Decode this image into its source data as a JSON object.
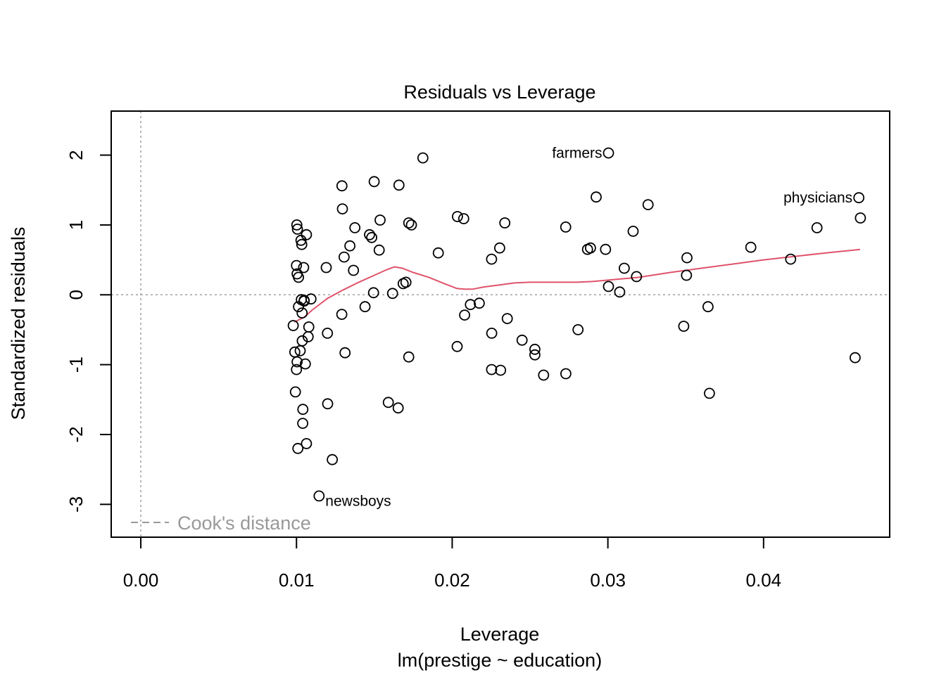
{
  "chart_data": {
    "type": "scatter",
    "title": "Residuals vs Leverage",
    "xlabel": "Leverage",
    "sublabel": "lm(prestige ~ education)",
    "ylabel": "Standardized residuals",
    "xlim": [
      -0.0019,
      0.0481
    ],
    "ylim": [
      -3.47,
      2.63
    ],
    "x_ticks": [
      0.0,
      0.01,
      0.02,
      0.03,
      0.04
    ],
    "x_tick_labels": [
      "0.00",
      "0.01",
      "0.02",
      "0.03",
      "0.04"
    ],
    "y_ticks": [
      -3,
      -2,
      -1,
      0,
      1,
      2
    ],
    "y_tick_labels": [
      "-3",
      "-2",
      "-1",
      "0",
      "1",
      "2"
    ],
    "reference_lines": {
      "x": 0,
      "y": 0,
      "color": "#a0a0a0"
    },
    "legend": {
      "label": "Cook's distance",
      "position": "bottom-left",
      "color": "#999999"
    },
    "smooth_color": "#df536b",
    "points": [
      [
        0.01002,
        1.0
      ],
      [
        0.01006,
        0.94
      ],
      [
        0.01029,
        0.78
      ],
      [
        0.01034,
        0.72
      ],
      [
        0.01064,
        0.86
      ],
      [
        0.01,
        0.42
      ],
      [
        0.01046,
        0.39
      ],
      [
        0.01004,
        0.3
      ],
      [
        0.01013,
        0.25
      ],
      [
        0.01031,
        -0.07
      ],
      [
        0.01049,
        -0.08
      ],
      [
        0.01049,
        -0.09
      ],
      [
        0.01093,
        -0.06
      ],
      [
        0.01013,
        -0.17
      ],
      [
        0.01036,
        -0.26
      ],
      [
        0.00979,
        -0.44
      ],
      [
        0.01079,
        -0.46
      ],
      [
        0.01037,
        -0.66
      ],
      [
        0.01075,
        -0.6
      ],
      [
        0.00989,
        -0.82
      ],
      [
        0.01024,
        -0.8
      ],
      [
        0.01004,
        -0.96
      ],
      [
        0.01057,
        -0.99
      ],
      [
        0.01,
        -1.07
      ],
      [
        0.00993,
        -1.39
      ],
      [
        0.01041,
        -1.64
      ],
      [
        0.0104,
        -1.84
      ],
      [
        0.01064,
        -2.13
      ],
      [
        0.01009,
        -2.2
      ],
      [
        0.01145,
        -2.88
      ],
      [
        0.0123,
        -2.36
      ],
      [
        0.01191,
        0.39
      ],
      [
        0.01199,
        -0.55
      ],
      [
        0.012,
        -1.56
      ],
      [
        0.01292,
        1.56
      ],
      [
        0.01295,
        1.23
      ],
      [
        0.01306,
        0.54
      ],
      [
        0.01291,
        -0.28
      ],
      [
        0.01312,
        -0.83
      ],
      [
        0.01343,
        0.7
      ],
      [
        0.01366,
        0.35
      ],
      [
        0.01375,
        0.96
      ],
      [
        0.0144,
        -0.17
      ],
      [
        0.01469,
        0.86
      ],
      [
        0.01483,
        0.82
      ],
      [
        0.01499,
        1.62
      ],
      [
        0.01495,
        0.03
      ],
      [
        0.01531,
        0.64
      ],
      [
        0.01537,
        1.07
      ],
      [
        0.0159,
        -1.54
      ],
      [
        0.01617,
        0.02
      ],
      [
        0.01653,
        -1.62
      ],
      [
        0.01658,
        1.57
      ],
      [
        0.01685,
        0.16
      ],
      [
        0.01703,
        0.18
      ],
      [
        0.01721,
        1.03
      ],
      [
        0.01738,
        1.0
      ],
      [
        0.01721,
        -0.89
      ],
      [
        0.01812,
        1.96
      ],
      [
        0.01911,
        0.6
      ],
      [
        0.02034,
        1.12
      ],
      [
        0.02032,
        -0.74
      ],
      [
        0.02074,
        1.09
      ],
      [
        0.0208,
        -0.29
      ],
      [
        0.02117,
        -0.14
      ],
      [
        0.02174,
        -0.12
      ],
      [
        0.02254,
        -0.55
      ],
      [
        0.02253,
        0.51
      ],
      [
        0.02253,
        -1.07
      ],
      [
        0.02305,
        0.67
      ],
      [
        0.02311,
        -1.08
      ],
      [
        0.02338,
        1.03
      ],
      [
        0.02354,
        -0.34
      ],
      [
        0.02449,
        -0.65
      ],
      [
        0.02531,
        -0.78
      ],
      [
        0.02531,
        -0.86
      ],
      [
        0.02587,
        -1.15
      ],
      [
        0.02729,
        0.97
      ],
      [
        0.0273,
        -1.13
      ],
      [
        0.02808,
        -0.5
      ],
      [
        0.02869,
        0.65
      ],
      [
        0.02888,
        0.67
      ],
      [
        0.02925,
        1.4
      ],
      [
        0.02985,
        0.65
      ],
      [
        0.03004,
        0.12
      ],
      [
        0.03004,
        2.03
      ],
      [
        0.03076,
        0.04
      ],
      [
        0.03105,
        0.38
      ],
      [
        0.03162,
        0.91
      ],
      [
        0.03184,
        0.26
      ],
      [
        0.03258,
        1.29
      ],
      [
        0.03487,
        -0.45
      ],
      [
        0.03505,
        0.28
      ],
      [
        0.03508,
        0.53
      ],
      [
        0.03643,
        -0.17
      ],
      [
        0.03652,
        -1.41
      ],
      [
        0.03918,
        0.68
      ],
      [
        0.04174,
        0.51
      ],
      [
        0.04343,
        0.96
      ],
      [
        0.04588,
        -0.9
      ],
      [
        0.04612,
        1.39
      ],
      [
        0.04622,
        1.1
      ]
    ],
    "smooth_line": [
      [
        0.00986,
        -0.39
      ],
      [
        0.0105,
        -0.32
      ],
      [
        0.011,
        -0.22
      ],
      [
        0.012,
        -0.05
      ],
      [
        0.013,
        0.07
      ],
      [
        0.014,
        0.18
      ],
      [
        0.015,
        0.28
      ],
      [
        0.0158,
        0.36
      ],
      [
        0.0163,
        0.4
      ],
      [
        0.0168,
        0.38
      ],
      [
        0.0175,
        0.32
      ],
      [
        0.0185,
        0.25
      ],
      [
        0.0195,
        0.16
      ],
      [
        0.0203,
        0.09
      ],
      [
        0.0208,
        0.08
      ],
      [
        0.0213,
        0.08
      ],
      [
        0.022,
        0.11
      ],
      [
        0.023,
        0.14
      ],
      [
        0.024,
        0.17
      ],
      [
        0.025,
        0.18
      ],
      [
        0.026,
        0.18
      ],
      [
        0.027,
        0.18
      ],
      [
        0.028,
        0.18
      ],
      [
        0.029,
        0.19
      ],
      [
        0.03,
        0.21
      ],
      [
        0.031,
        0.23
      ],
      [
        0.032,
        0.25
      ],
      [
        0.034,
        0.32
      ],
      [
        0.036,
        0.38
      ],
      [
        0.038,
        0.44
      ],
      [
        0.04,
        0.5
      ],
      [
        0.042,
        0.55
      ],
      [
        0.044,
        0.6
      ],
      [
        0.0462,
        0.65
      ]
    ],
    "annotations": [
      {
        "text": "farmers",
        "x": 0.03004,
        "y": 2.03,
        "anchor": "end"
      },
      {
        "text": "physicians",
        "x": 0.04612,
        "y": 1.39,
        "anchor": "end"
      },
      {
        "text": "newsboys",
        "x": 0.01145,
        "y": -2.88,
        "anchor": "start"
      }
    ]
  }
}
